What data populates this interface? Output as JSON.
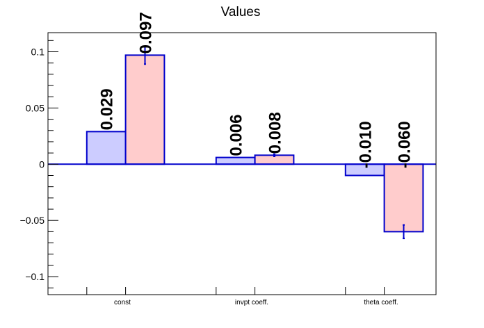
{
  "chart_data": {
    "type": "bar",
    "title": "Values",
    "xlabel": "",
    "ylabel": "",
    "categories": [
      "const",
      "invpt coeff.",
      "theta coeff."
    ],
    "series": [
      {
        "values": [
          0.029,
          0.006,
          -0.01
        ],
        "errors": [
          0.0,
          0.0,
          0.0
        ],
        "labels": [
          "0.029",
          "0.006",
          "-0.010"
        ],
        "fill": "#ccccff",
        "stroke": "#0000cc"
      },
      {
        "values": [
          0.097,
          0.008,
          -0.06
        ],
        "errors": [
          0.008,
          0.001,
          0.006
        ],
        "labels": [
          "0.097",
          "0.008",
          "-0.060"
        ],
        "fill": "#ffcccc",
        "stroke": "#0000cc"
      }
    ],
    "ylim": [
      -0.116,
      0.117
    ],
    "yticks": [
      {
        "value": 0.1,
        "label": "0.1"
      },
      {
        "value": 0.05,
        "label": "0.05"
      },
      {
        "value": 0,
        "label": "0"
      },
      {
        "value": -0.05,
        "label": "−0.05"
      },
      {
        "value": -0.1,
        "label": "−0.1"
      }
    ],
    "grid": false,
    "frame_color": "#000000",
    "zero_line_color": "#0000cc"
  }
}
